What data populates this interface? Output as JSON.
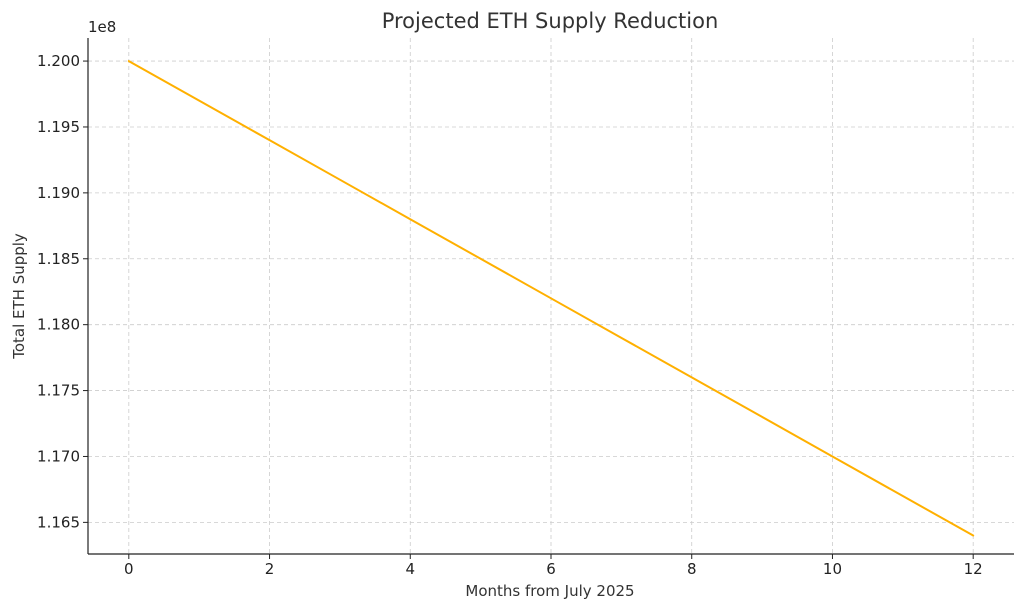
{
  "chart_data": {
    "type": "line",
    "title": "Projected ETH Supply Reduction",
    "xlabel": "Months from July 2025",
    "ylabel": "Total ETH Supply",
    "y_offset_label": "1e8",
    "xlim": [
      -0.58,
      12.58
    ],
    "ylim": [
      116260000,
      120175000
    ],
    "x_ticks": [
      0,
      2,
      4,
      6,
      8,
      10,
      12
    ],
    "x_tick_labels": [
      "0",
      "2",
      "4",
      "6",
      "8",
      "10",
      "12"
    ],
    "y_ticks": [
      116500000,
      117000000,
      117500000,
      118000000,
      118500000,
      119000000,
      119500000,
      120000000
    ],
    "y_tick_labels": [
      "1.165",
      "1.170",
      "1.175",
      "1.180",
      "1.185",
      "1.190",
      "1.195",
      "1.200"
    ],
    "grid": true,
    "legend": "none",
    "series": [
      {
        "color": "#FFB000",
        "x": [
          0,
          1,
          2,
          3,
          4,
          5,
          6,
          7,
          8,
          9,
          10,
          11,
          12
        ],
        "y": [
          120000000,
          119700000,
          119400000,
          119100000,
          118800000,
          118500000,
          118200000,
          117900000,
          117600000,
          117300000,
          117000000,
          116700000,
          116400000
        ]
      }
    ],
    "colors": {
      "axis": "#222222",
      "grid": "#cccccc",
      "text": "#333333"
    }
  }
}
